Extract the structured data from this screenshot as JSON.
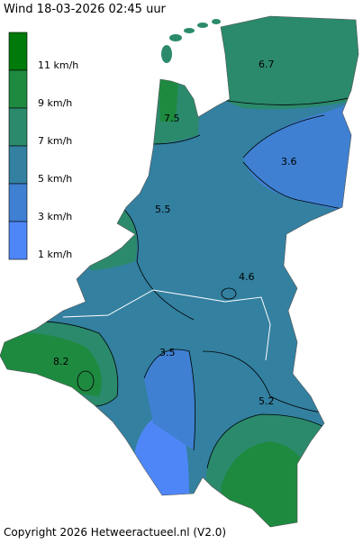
{
  "title": "Wind 18-03-2026  02:45 uur",
  "legend": {
    "items": [
      {
        "label": "11 km/h",
        "color": "#007a0a"
      },
      {
        "label": "9 km/h",
        "color": "#1e8a40"
      },
      {
        "label": "7 km/h",
        "color": "#2b8a6c"
      },
      {
        "label": "5 km/h",
        "color": "#3380a0"
      },
      {
        "label": "3 km/h",
        "color": "#3f80d2"
      },
      {
        "label": "1 km/h",
        "color": "#4f86f7"
      }
    ]
  },
  "contour_labels": [
    "6.7",
    "7.5",
    "3.6",
    "5.5",
    "4.6",
    "8.2",
    "3.5",
    "5.2"
  ],
  "copyright": "Copyright 2026 Hetweeractueel.nl (V2.0)"
}
